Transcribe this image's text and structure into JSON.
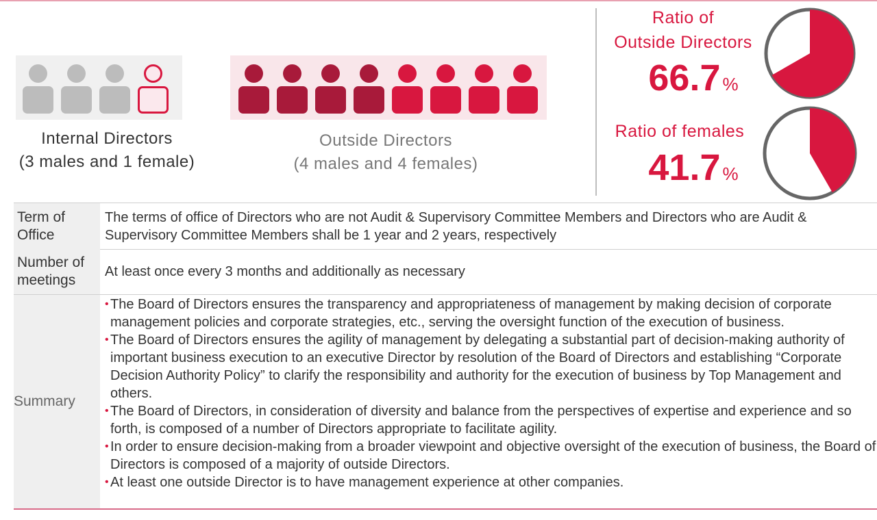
{
  "composition": {
    "internal": {
      "caption_line1": "Internal Directors",
      "caption_line2": "(3 males and 1 female)",
      "male_count": 3,
      "female_count": 1
    },
    "outside": {
      "caption_line1": "Outside Directors",
      "caption_line2": "(4 males and 4 females)",
      "male_count": 4,
      "female_count": 4
    }
  },
  "ratios": {
    "outside_directors": {
      "label_line1": "Ratio of",
      "label_line2": "Outside Directors",
      "value": "66.7",
      "unit": "%",
      "fraction": 0.667
    },
    "females": {
      "label": "Ratio of females",
      "value": "41.7",
      "unit": "%",
      "fraction": 0.417
    }
  },
  "table": {
    "term_of_office": {
      "head_line1": "Term of",
      "head_line2": "Office",
      "text_line1": "The terms of office of Directors who are not Audit & Supervisory Committee Members and Directors who are Audit &",
      "text_line2": "Supervisory Committee Members shall be 1 year and 2 years, respectively"
    },
    "meetings": {
      "head_line1": "Number of",
      "head_line2": "meetings",
      "text": "At least once every 3 months and additionally as necessary"
    },
    "summary": {
      "head": "Summary",
      "bullet_char": "•",
      "items": [
        "The Board of Directors ensures the transparency and appropriateness of management by making decision of corporate management policies and corporate strategies, etc., serving the oversight function of the execution of business.",
        "The Board of Directors ensures the agility of management by delegating a substantial part of decision-making authority of  important business execution to an executive Director by resolution of the Board of Directors and establishing “Corporate Decision Authority Policy” to clarify the responsibility and authority for the execution of business by Top Management and others.",
        "The Board of Directors, in consideration of diversity and balance from the perspectives of expertise and experience and so forth, is composed of a number of Directors appropriate to facilitate agility.",
        "In order to ensure decision-making from a broader viewpoint and objective oversight of the execution of business, the Board of Directors is composed of a majority of outside Directors.",
        "At least one outside Director is to have management experience at other companies."
      ]
    }
  },
  "colors": {
    "accent_red": "#d8173f",
    "dark_red": "#a81a3a",
    "gray_person": "#bcbcbc",
    "pie_outline": "#666666"
  }
}
